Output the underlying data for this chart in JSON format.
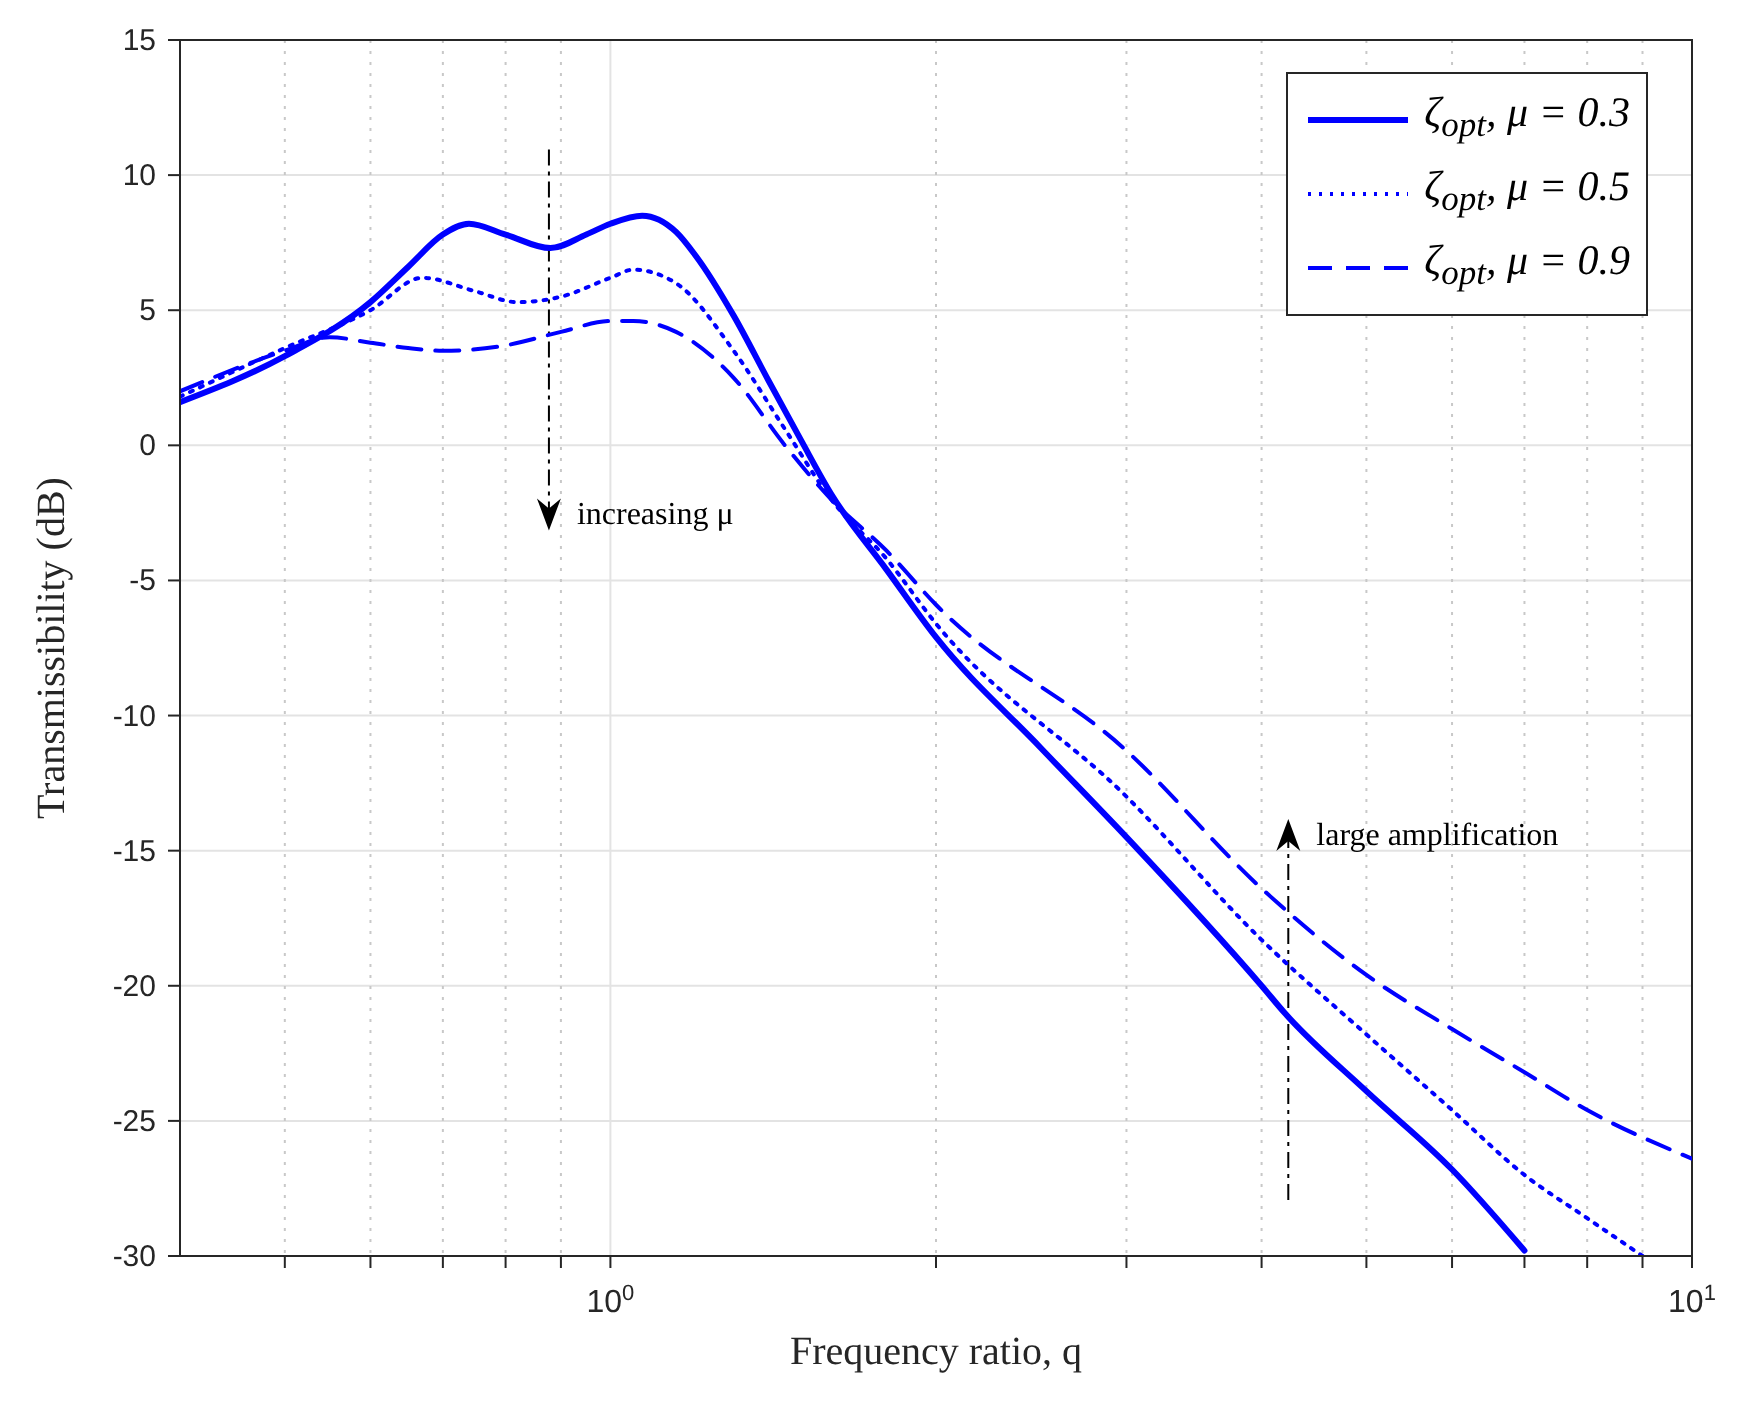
{
  "chart_data": {
    "type": "line",
    "xlabel": "Frequency ratio, q",
    "ylabel": "Transmissibility (dB)",
    "log": "x",
    "xlim": [
      0.4,
      10
    ],
    "xticks": [
      {
        "value": 0.5,
        "label": null
      },
      {
        "value": 0.6,
        "label": null
      },
      {
        "value": 0.7,
        "label": null
      },
      {
        "value": 0.8,
        "label": null
      },
      {
        "value": 0.9,
        "label": null
      },
      {
        "value": 1,
        "label": "10$^{0}$"
      },
      {
        "value": 2,
        "label": null
      },
      {
        "value": 3,
        "label": null
      },
      {
        "value": 4,
        "label": null
      },
      {
        "value": 5,
        "label": null
      },
      {
        "value": 6,
        "label": null
      },
      {
        "value": 7,
        "label": null
      },
      {
        "value": 8,
        "label": null
      },
      {
        "value": 9,
        "label": null
      },
      {
        "value": 10,
        "label": "10$^{1}$"
      }
    ],
    "ylim": [
      -30,
      15
    ],
    "yticks": [
      -30,
      -25,
      -20,
      -15,
      -10,
      -5,
      0,
      5,
      10,
      15
    ],
    "grid": true,
    "legend": "top right",
    "marker": "none",
    "series": [
      {
        "name": "ζ$_{opt}$, μ = 0.3",
        "color": "#0000ff",
        "line_style": "solid",
        "x": [
          0.4,
          0.5,
          0.6,
          0.65,
          0.7,
          0.74,
          0.8,
          0.88,
          0.95,
          1.0,
          1.07,
          1.15,
          1.2,
          1.3,
          1.4,
          1.5,
          1.6,
          1.8,
          2,
          2.5,
          3,
          4,
          4.2,
          5,
          6,
          7
        ],
        "values": [
          1.6,
          3.3,
          5.3,
          6.6,
          7.8,
          8.2,
          7.8,
          7.3,
          7.8,
          8.2,
          8.5,
          7.9,
          7.0,
          4.8,
          2.4,
          0.2,
          -1.8,
          -4.6,
          -7.1,
          -11.2,
          -14.5,
          -20.0,
          -21.0,
          -23.9,
          -26.8,
          -29.8
        ]
      },
      {
        "name": "ζ$_{opt}$, μ = 0.5",
        "color": "#0000ff",
        "line_style": "dotted",
        "x": [
          0.4,
          0.5,
          0.6,
          0.67,
          0.75,
          0.82,
          0.9,
          1.0,
          1.05,
          1.15,
          1.3,
          1.45,
          1.6,
          1.8,
          2,
          3,
          4,
          5,
          6,
          7,
          8,
          9
        ],
        "values": [
          1.8,
          3.6,
          5.0,
          6.2,
          5.7,
          5.3,
          5.5,
          6.2,
          6.5,
          6.0,
          3.5,
          0.6,
          -2.0,
          -4.2,
          -6.6,
          -13.0,
          -18.3,
          -21.8,
          -24.6,
          -27.0,
          -28.6,
          -30
        ]
      },
      {
        "name": "ζ$_{opt}$, μ = 0.9",
        "color": "#0000ff",
        "line_style": "dashed",
        "x": [
          0.4,
          0.5,
          0.55,
          0.6,
          0.65,
          0.7,
          0.8,
          0.9,
          1.0,
          1.05,
          1.15,
          1.3,
          1.45,
          1.6,
          1.8,
          2,
          3,
          4,
          5,
          6,
          7,
          8,
          10
        ],
        "values": [
          2.0,
          3.5,
          4.0,
          3.8,
          3.6,
          3.5,
          3.7,
          4.2,
          4.6,
          4.6,
          4.2,
          2.5,
          0.0,
          -2.0,
          -3.9,
          -5.9,
          -11.3,
          -16.4,
          -19.6,
          -21.6,
          -23.2,
          -24.6,
          -26.4
        ]
      }
    ],
    "annotations": [
      "increasing μ",
      "large amplification"
    ]
  }
}
